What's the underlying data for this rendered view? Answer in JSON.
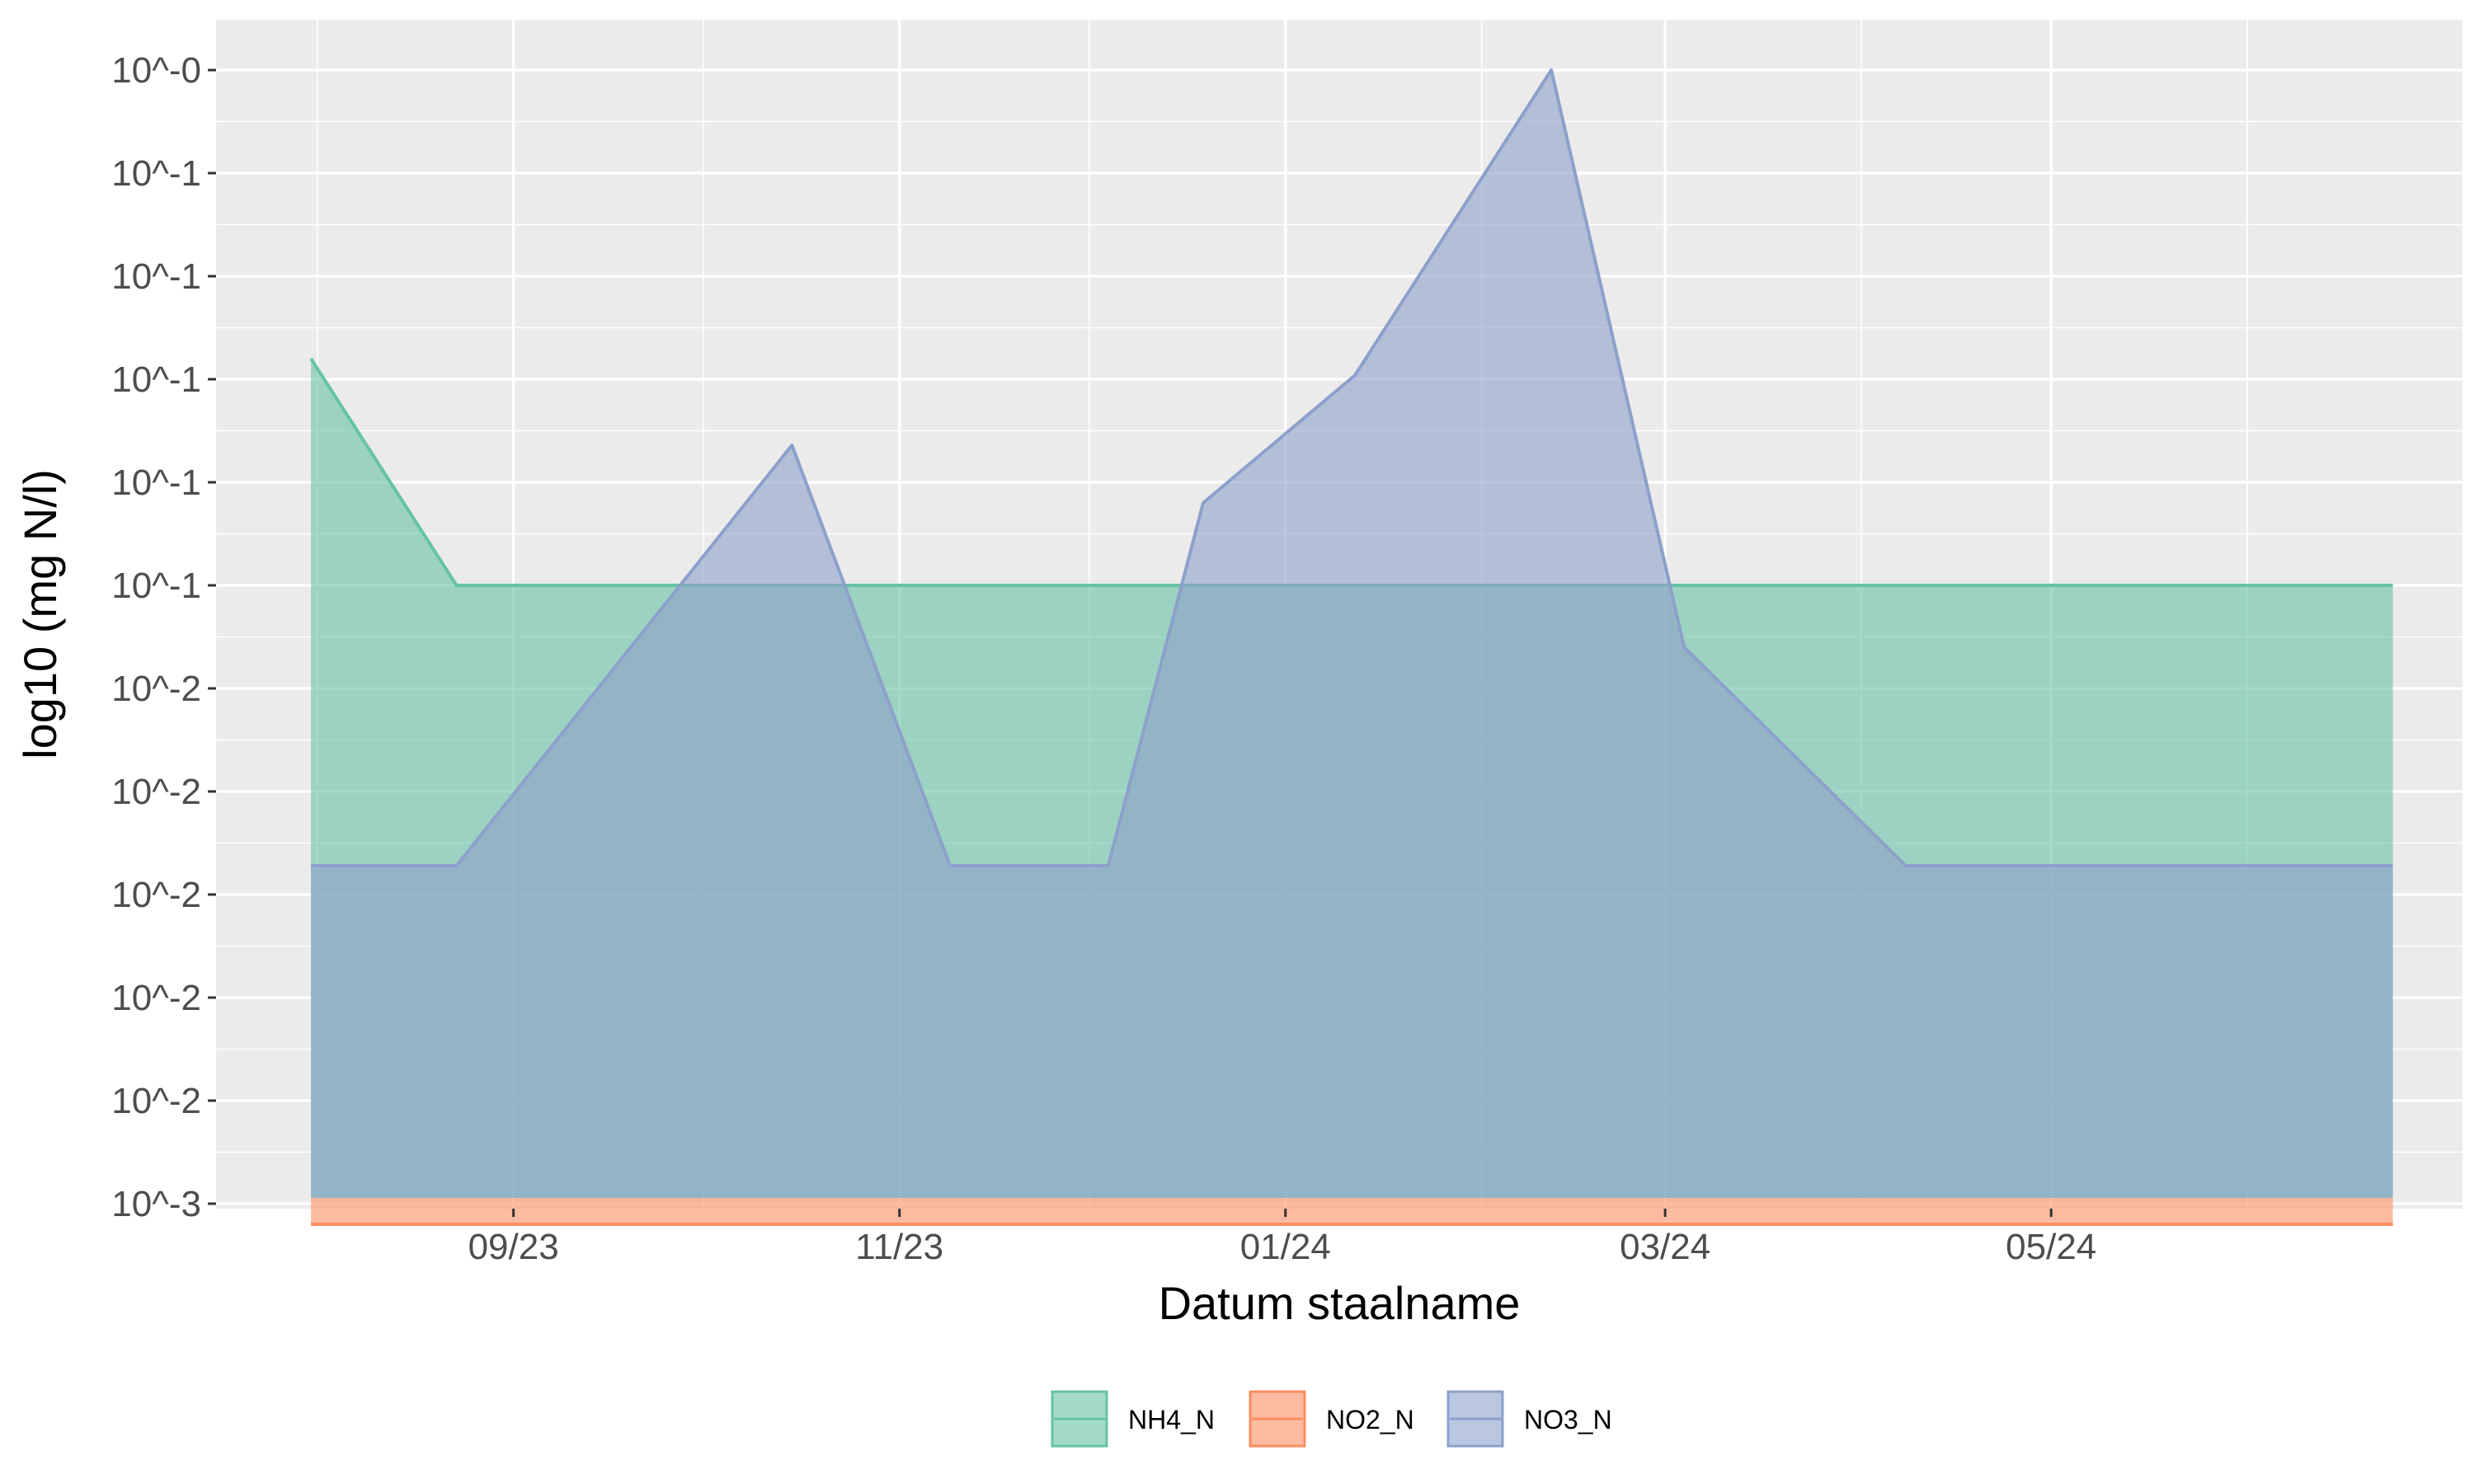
{
  "chart_data": {
    "type": "area",
    "xlabel": "Datum staalname",
    "ylabel": "log10 (mg N/l)",
    "y_scale": "log10",
    "grid": true,
    "legend_position": "bottom",
    "xlim": [
      "2023-07-16",
      "2024-07-05"
    ],
    "ylim_log10": [
      -3.003,
      -0.495
    ],
    "x_ticks": [
      {
        "date": "2023-09-01",
        "label": "09/23"
      },
      {
        "date": "2023-11-01",
        "label": "11/23"
      },
      {
        "date": "2024-01-01",
        "label": "01/24"
      },
      {
        "date": "2024-03-01",
        "label": "03/24"
      },
      {
        "date": "2024-05-01",
        "label": "05/24"
      }
    ],
    "x_minor_ticks": [
      "2023-08-01",
      "2023-10-01",
      "2023-12-01",
      "2024-02-01",
      "2024-04-01",
      "2024-06-01"
    ],
    "y_ticks": [
      {
        "value": -0.5,
        "label": "10^-0"
      },
      {
        "value": -0.75,
        "label": "10^-1"
      },
      {
        "value": -1.0,
        "label": "10^-1"
      },
      {
        "value": -1.25,
        "label": "10^-1"
      },
      {
        "value": -1.5,
        "label": "10^-1"
      },
      {
        "value": -1.75,
        "label": "10^-1"
      },
      {
        "value": -2.0,
        "label": "10^-2"
      },
      {
        "value": -2.25,
        "label": "10^-2"
      },
      {
        "value": -2.5,
        "label": "10^-2"
      },
      {
        "value": -2.75,
        "label": "10^-2"
      },
      {
        "value": -3.0,
        "label": "10^-2"
      },
      {
        "value": -3.25,
        "label": "10^-3"
      }
    ],
    "series": [
      {
        "name": "NH4_N",
        "color": "#66c2a5",
        "points": [
          {
            "x": "2023-07-31",
            "y": -1.2
          },
          {
            "x": "2023-08-23",
            "y": -1.75
          },
          {
            "x": "2024-06-24",
            "y": -1.75
          }
        ]
      },
      {
        "name": "NO2_N",
        "color": "#fc8d62",
        "points": [
          {
            "x": "2023-07-31",
            "y": -3.3
          },
          {
            "x": "2024-06-24",
            "y": -3.3
          }
        ]
      },
      {
        "name": "NO3_N",
        "color": "#8da0cb",
        "points": [
          {
            "x": "2023-07-31",
            "y": -2.43
          },
          {
            "x": "2023-08-23",
            "y": -2.43
          },
          {
            "x": "2023-10-15",
            "y": -1.41
          },
          {
            "x": "2023-11-09",
            "y": -2.43
          },
          {
            "x": "2023-12-04",
            "y": -2.43
          },
          {
            "x": "2023-12-19",
            "y": -1.55
          },
          {
            "x": "2024-01-12",
            "y": -1.24
          },
          {
            "x": "2024-02-12",
            "y": -0.5
          },
          {
            "x": "2024-03-04",
            "y": -1.9
          },
          {
            "x": "2024-04-08",
            "y": -2.43
          },
          {
            "x": "2024-06-24",
            "y": -2.43
          }
        ]
      }
    ]
  }
}
